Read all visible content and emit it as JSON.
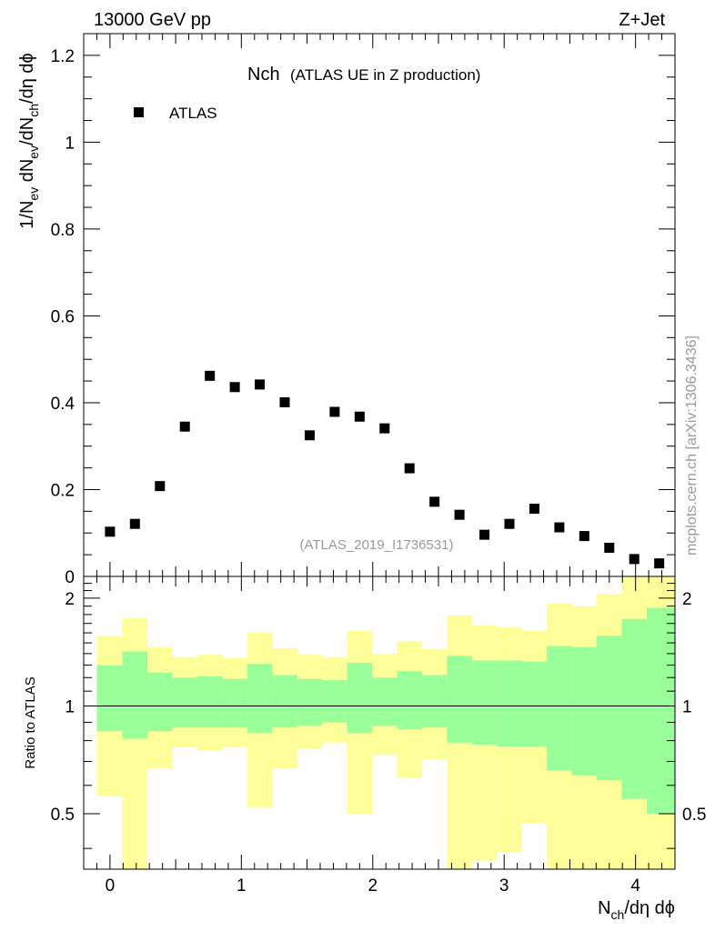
{
  "header": {
    "left_label": "13000 GeV pp",
    "right_label": "Z+Jet"
  },
  "side_text": "mcplots.cern.ch [arXiv:1306.3436]",
  "chart_data": {
    "type": "scatter",
    "title": "Nch",
    "subtitle": "(ATLAS UE in Z production)",
    "watermark": "(ATLAS_2019_I1736531)",
    "legend": {
      "position": "top-left",
      "entries": [
        "ATLAS"
      ]
    },
    "xlabel": {
      "base": "N",
      "sub": "ch",
      "rest": "/dη dϕ"
    },
    "ylabel": {
      "parts": [
        {
          "t": "1/N"
        },
        {
          "t": "ev",
          "sub": true
        },
        {
          "t": " dN"
        },
        {
          "t": "ev",
          "sub": true
        },
        {
          "t": "/dN"
        },
        {
          "t": "ch",
          "sub": true
        },
        {
          "t": "/dη dϕ"
        }
      ]
    },
    "xlim": [
      -0.2,
      4.3
    ],
    "ylim": [
      0,
      1.25
    ],
    "x_ticks": [
      0,
      1,
      2,
      3,
      4
    ],
    "x_tick_labels": [
      "0",
      "1",
      "2",
      "3",
      "4"
    ],
    "y_ticks": [
      0,
      0.2,
      0.4,
      0.6,
      0.8,
      1,
      1.2
    ],
    "y_tick_labels": [
      "0",
      "0.2",
      "0.4",
      "0.6",
      "0.8",
      "1",
      "1.2"
    ],
    "series": [
      {
        "name": "ATLAS",
        "x": [
          0.0,
          0.19,
          0.38,
          0.57,
          0.76,
          0.95,
          1.14,
          1.33,
          1.52,
          1.71,
          1.9,
          2.09,
          2.28,
          2.47,
          2.66,
          2.85,
          3.04,
          3.23,
          3.42,
          3.61,
          3.8,
          3.99,
          4.18
        ],
        "y": [
          0.103,
          0.121,
          0.208,
          0.345,
          0.462,
          0.436,
          0.442,
          0.401,
          0.325,
          0.379,
          0.368,
          0.341,
          0.249,
          0.172,
          0.142,
          0.096,
          0.121,
          0.156,
          0.113,
          0.093,
          0.066,
          0.04,
          0.03
        ]
      }
    ],
    "ratio_panel": {
      "ylabel": "Ratio to ATLAS",
      "ylim": [
        0.35,
        2.3
      ],
      "scale": "log",
      "y_ticks": [
        0.5,
        1,
        2
      ],
      "y_tick_labels": [
        "0.5",
        "1",
        "2"
      ],
      "reference_line": 1,
      "bin_edges": [
        -0.1,
        0.095,
        0.285,
        0.475,
        0.665,
        0.855,
        1.045,
        1.235,
        1.425,
        1.615,
        1.805,
        1.995,
        2.185,
        2.375,
        2.565,
        2.755,
        2.945,
        3.135,
        3.325,
        3.515,
        3.705,
        3.895,
        4.085,
        4.3
      ],
      "green_band": {
        "lo": [
          0.85,
          0.81,
          0.85,
          0.87,
          0.87,
          0.87,
          0.84,
          0.87,
          0.88,
          0.9,
          0.84,
          0.88,
          0.86,
          0.87,
          0.79,
          0.78,
          0.77,
          0.77,
          0.66,
          0.64,
          0.62,
          0.55,
          0.5
        ],
        "hi": [
          1.3,
          1.42,
          1.24,
          1.2,
          1.21,
          1.19,
          1.31,
          1.22,
          1.19,
          1.18,
          1.32,
          1.2,
          1.25,
          1.22,
          1.38,
          1.34,
          1.34,
          1.33,
          1.47,
          1.46,
          1.57,
          1.75,
          1.88
        ]
      },
      "yellow_band": {
        "lo": [
          0.56,
          0.35,
          0.67,
          0.77,
          0.75,
          0.77,
          0.52,
          0.67,
          0.76,
          0.79,
          0.5,
          0.73,
          0.63,
          0.71,
          0.35,
          0.37,
          0.39,
          0.47,
          0.35,
          0.35,
          0.35,
          0.35,
          0.35
        ],
        "hi": [
          1.57,
          1.76,
          1.46,
          1.37,
          1.39,
          1.36,
          1.6,
          1.45,
          1.39,
          1.37,
          1.62,
          1.4,
          1.52,
          1.44,
          1.79,
          1.68,
          1.66,
          1.62,
          1.93,
          1.9,
          2.05,
          2.3,
          2.3
        ]
      }
    }
  }
}
